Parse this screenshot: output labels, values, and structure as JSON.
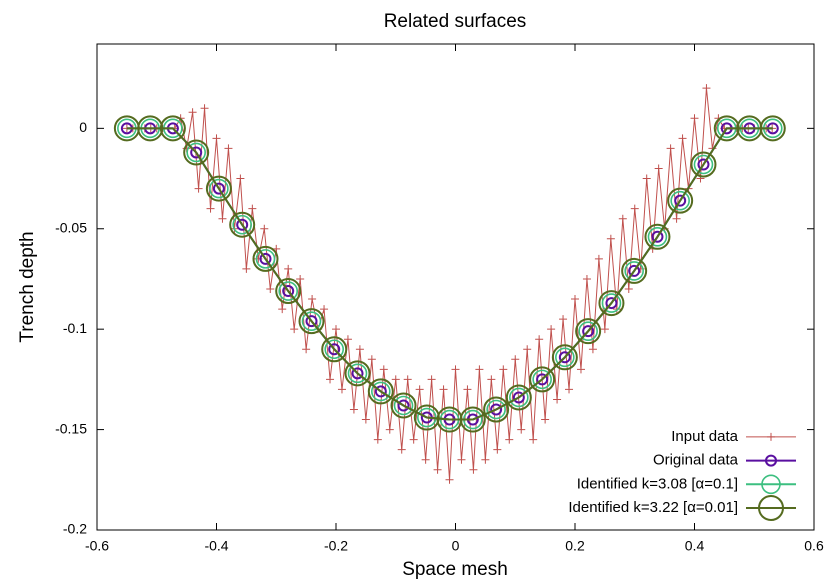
{
  "chart_data": {
    "type": "line",
    "title": "Related surfaces",
    "xlabel": "Space mesh",
    "ylabel": "Trench depth",
    "xlim": [
      -0.6,
      0.6
    ],
    "xticks": [
      -0.6,
      -0.4,
      -0.2,
      0,
      0.2,
      0.4,
      0.6
    ],
    "ylim": [
      -0.2,
      0.042
    ],
    "yticks": [
      -0.2,
      -0.15,
      -0.1,
      -0.05,
      0
    ],
    "grid": false,
    "legend": "bottom-right",
    "series": [
      {
        "name": "Input data",
        "color": "#c0504d",
        "marker": "plus",
        "x": [
          -0.55,
          -0.54,
          -0.53,
          -0.52,
          -0.51,
          -0.5,
          -0.49,
          -0.48,
          -0.47,
          -0.46,
          -0.45,
          -0.44,
          -0.43,
          -0.42,
          -0.41,
          -0.4,
          -0.39,
          -0.38,
          -0.37,
          -0.36,
          -0.35,
          -0.34,
          -0.33,
          -0.32,
          -0.31,
          -0.3,
          -0.29,
          -0.28,
          -0.27,
          -0.26,
          -0.25,
          -0.24,
          -0.23,
          -0.22,
          -0.21,
          -0.2,
          -0.19,
          -0.18,
          -0.17,
          -0.16,
          -0.15,
          -0.14,
          -0.13,
          -0.12,
          -0.11,
          -0.1,
          -0.09,
          -0.08,
          -0.07,
          -0.06,
          -0.05,
          -0.04,
          -0.03,
          -0.02,
          -0.01,
          0,
          0.01,
          0.02,
          0.03,
          0.04,
          0.05,
          0.06,
          0.07,
          0.08,
          0.09,
          0.1,
          0.11,
          0.12,
          0.13,
          0.14,
          0.15,
          0.16,
          0.17,
          0.18,
          0.19,
          0.2,
          0.21,
          0.22,
          0.23,
          0.24,
          0.25,
          0.26,
          0.27,
          0.28,
          0.29,
          0.3,
          0.31,
          0.32,
          0.33,
          0.34,
          0.35,
          0.36,
          0.37,
          0.38,
          0.39,
          0.4,
          0.41,
          0.42,
          0.43,
          0.44,
          0.45,
          0.46,
          0.47,
          0.48,
          0.49,
          0.5,
          0.51,
          0.52,
          0.53
        ],
        "values": [
          0,
          0,
          0,
          0,
          0,
          0,
          0,
          0,
          0,
          0.005,
          -0.01,
          0.008,
          -0.03,
          0.01,
          -0.04,
          -0.005,
          -0.045,
          -0.01,
          -0.05,
          -0.025,
          -0.07,
          -0.04,
          -0.065,
          -0.05,
          -0.08,
          -0.06,
          -0.09,
          -0.07,
          -0.1,
          -0.075,
          -0.11,
          -0.085,
          -0.1,
          -0.09,
          -0.125,
          -0.1,
          -0.13,
          -0.105,
          -0.14,
          -0.11,
          -0.145,
          -0.115,
          -0.155,
          -0.12,
          -0.15,
          -0.125,
          -0.16,
          -0.125,
          -0.155,
          -0.13,
          -0.165,
          -0.125,
          -0.17,
          -0.13,
          -0.175,
          -0.12,
          -0.165,
          -0.13,
          -0.17,
          -0.12,
          -0.165,
          -0.125,
          -0.16,
          -0.12,
          -0.155,
          -0.115,
          -0.15,
          -0.11,
          -0.155,
          -0.105,
          -0.145,
          -0.1,
          -0.135,
          -0.095,
          -0.13,
          -0.085,
          -0.12,
          -0.075,
          -0.11,
          -0.065,
          -0.1,
          -0.055,
          -0.09,
          -0.045,
          -0.08,
          -0.04,
          -0.07,
          -0.025,
          -0.06,
          -0.02,
          -0.05,
          -0.01,
          -0.045,
          -0.005,
          -0.03,
          0.005,
          -0.025,
          0.02,
          -0.01,
          0.005,
          0,
          0,
          0,
          0,
          0,
          0,
          0,
          0,
          0
        ]
      },
      {
        "name": "Original data",
        "color": "#5a0fa0",
        "marker": "circle",
        "x": [
          -0.55,
          -0.511,
          -0.473,
          -0.434,
          -0.396,
          -0.357,
          -0.318,
          -0.28,
          -0.241,
          -0.203,
          -0.164,
          -0.125,
          -0.087,
          -0.048,
          -0.01,
          0.029,
          0.068,
          0.106,
          0.145,
          0.183,
          0.222,
          0.261,
          0.299,
          0.338,
          0.376,
          0.415,
          0.454,
          0.492,
          0.531
        ],
        "values": [
          0,
          0,
          0,
          -0.012,
          -0.03,
          -0.048,
          -0.065,
          -0.081,
          -0.096,
          -0.11,
          -0.122,
          -0.131,
          -0.138,
          -0.144,
          -0.145,
          -0.145,
          -0.14,
          -0.134,
          -0.125,
          -0.114,
          -0.101,
          -0.087,
          -0.071,
          -0.054,
          -0.036,
          -0.018,
          0,
          0,
          0
        ]
      },
      {
        "name": "Identified k=3.08 [α=0.1]",
        "color": "#3cbf80",
        "marker": "circle",
        "x": [
          -0.55,
          -0.511,
          -0.473,
          -0.434,
          -0.396,
          -0.357,
          -0.318,
          -0.28,
          -0.241,
          -0.203,
          -0.164,
          -0.125,
          -0.087,
          -0.048,
          -0.01,
          0.029,
          0.068,
          0.106,
          0.145,
          0.183,
          0.222,
          0.261,
          0.299,
          0.338,
          0.376,
          0.415,
          0.454,
          0.492,
          0.531
        ],
        "values": [
          0,
          0,
          0,
          -0.012,
          -0.03,
          -0.048,
          -0.065,
          -0.081,
          -0.096,
          -0.11,
          -0.122,
          -0.131,
          -0.138,
          -0.144,
          -0.145,
          -0.145,
          -0.14,
          -0.134,
          -0.125,
          -0.114,
          -0.101,
          -0.087,
          -0.071,
          -0.054,
          -0.036,
          -0.018,
          0,
          0,
          0
        ]
      },
      {
        "name": "Identified k=3.22 [α=0.01]",
        "color": "#556b1f",
        "marker": "circle",
        "x": [
          -0.55,
          -0.511,
          -0.473,
          -0.434,
          -0.396,
          -0.357,
          -0.318,
          -0.28,
          -0.241,
          -0.203,
          -0.164,
          -0.125,
          -0.087,
          -0.048,
          -0.01,
          0.029,
          0.068,
          0.106,
          0.145,
          0.183,
          0.222,
          0.261,
          0.299,
          0.338,
          0.376,
          0.415,
          0.454,
          0.492,
          0.531
        ],
        "values": [
          0,
          0,
          0,
          -0.012,
          -0.03,
          -0.048,
          -0.065,
          -0.081,
          -0.096,
          -0.11,
          -0.122,
          -0.131,
          -0.138,
          -0.144,
          -0.145,
          -0.145,
          -0.14,
          -0.134,
          -0.125,
          -0.114,
          -0.101,
          -0.087,
          -0.071,
          -0.054,
          -0.036,
          -0.018,
          0,
          0,
          0
        ]
      }
    ]
  }
}
